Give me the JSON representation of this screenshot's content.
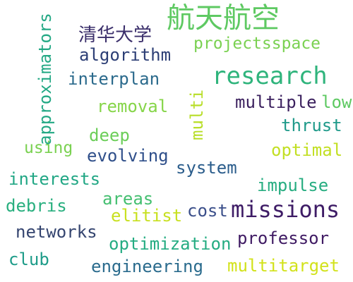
{
  "words": {
    "hangtian": {
      "text": "航天航空",
      "color": "#5ec962"
    },
    "qinghua": {
      "text": "清华大学",
      "color": "#3b2f6b"
    },
    "approximators": {
      "text": "approximators",
      "color": "#23a884"
    },
    "algorithm": {
      "text": "algorithm",
      "color": "#2c3e75"
    },
    "projectsspace": {
      "text": "projectsspace",
      "color": "#7ad151"
    },
    "interplan": {
      "text": "interplan",
      "color": "#2b6a8c"
    },
    "research": {
      "text": "research",
      "color": "#2fb47c"
    },
    "multi": {
      "text": "multi",
      "color": "#b8de29"
    },
    "multiple": {
      "text": "multiple",
      "color": "#3a1f5d"
    },
    "low": {
      "text": "low",
      "color": "#5ec962"
    },
    "removal": {
      "text": "removal",
      "color": "#86d549"
    },
    "thrust": {
      "text": "thrust",
      "color": "#1f9a8a"
    },
    "deep": {
      "text": "deep",
      "color": "#6cce59"
    },
    "using": {
      "text": "using",
      "color": "#7ad151"
    },
    "evolving": {
      "text": "evolving",
      "color": "#2f4f8a"
    },
    "optimal": {
      "text": "optimal",
      "color": "#c2df23"
    },
    "system": {
      "text": "system",
      "color": "#2a5c8b"
    },
    "interests": {
      "text": "interests",
      "color": "#22a785"
    },
    "impulse": {
      "text": "impulse",
      "color": "#27ad81"
    },
    "areas": {
      "text": "areas",
      "color": "#44bf70"
    },
    "debris": {
      "text": "debris",
      "color": "#29af7f"
    },
    "elitist": {
      "text": "elitist",
      "color": "#c8e020"
    },
    "cost": {
      "text": "cost",
      "color": "#3b4f8a"
    },
    "missions": {
      "text": "missions",
      "color": "#3e1c66"
    },
    "networks": {
      "text": "networks",
      "color": "#34446f"
    },
    "optimization": {
      "text": "optimization",
      "color": "#25ac82"
    },
    "professor": {
      "text": "professor",
      "color": "#3f1a63"
    },
    "club": {
      "text": "club",
      "color": "#1e9c89"
    },
    "engineering": {
      "text": "engineering",
      "color": "#2a6b8d"
    },
    "multitarget": {
      "text": "multitarget",
      "color": "#d2e21b"
    }
  }
}
